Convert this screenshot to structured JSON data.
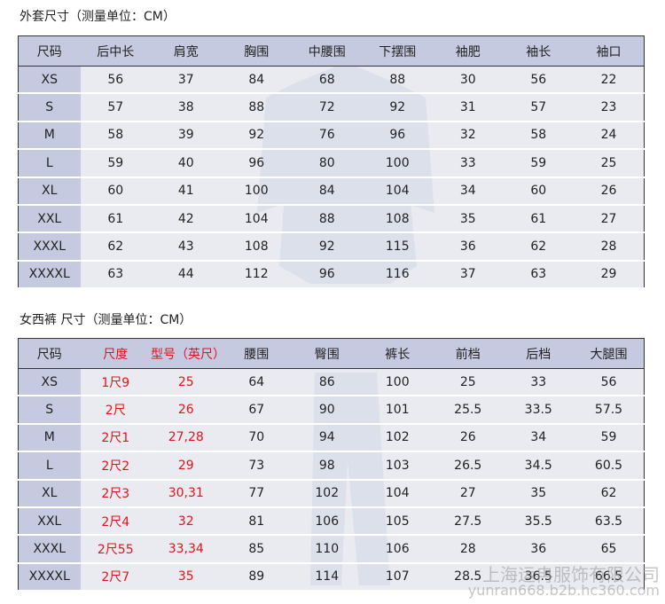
{
  "tables": [
    {
      "title": "外套尺寸（测量单位：CM）",
      "header": [
        "尺码",
        "后中长",
        "肩宽",
        "胸围",
        "中腰围",
        "下摆围",
        "袖肥",
        "袖长",
        "袖口"
      ],
      "rows": [
        [
          "XS",
          "56",
          "37",
          "84",
          "68",
          "88",
          "30",
          "56",
          "22"
        ],
        [
          "S",
          "57",
          "38",
          "88",
          "72",
          "92",
          "31",
          "57",
          "23"
        ],
        [
          "M",
          "58",
          "39",
          "92",
          "76",
          "96",
          "32",
          "58",
          "24"
        ],
        [
          "L",
          "59",
          "40",
          "96",
          "80",
          "100",
          "33",
          "59",
          "25"
        ],
        [
          "XL",
          "60",
          "41",
          "100",
          "84",
          "104",
          "34",
          "60",
          "26"
        ],
        [
          "XXL",
          "61",
          "42",
          "104",
          "88",
          "108",
          "35",
          "61",
          "27"
        ],
        [
          "XXXL",
          "62",
          "43",
          "108",
          "92",
          "115",
          "36",
          "62",
          "28"
        ],
        [
          "XXXXL",
          "63",
          "44",
          "112",
          "96",
          "116",
          "37",
          "63",
          "29"
        ]
      ]
    },
    {
      "title": "女西裤 尺寸（测量单位：CM）",
      "header": [
        "尺码",
        "尺度",
        "型号（英尺）",
        "腰围",
        "臀围",
        "裤长",
        "前档",
        "后档",
        "大腿围"
      ],
      "rows": [
        [
          "XS",
          "1尺9",
          "25",
          "64",
          "86",
          "100",
          "25",
          "33",
          "56"
        ],
        [
          "S",
          "2尺",
          "26",
          "67",
          "90",
          "101",
          "25.5",
          "33.5",
          "57.5"
        ],
        [
          "M",
          "2尺1",
          "27,28",
          "70",
          "94",
          "102",
          "26",
          "34",
          "59"
        ],
        [
          "L",
          "2尺2",
          "29",
          "73",
          "98",
          "103",
          "26.5",
          "34.5",
          "60.5"
        ],
        [
          "XL",
          "2尺3",
          "30,31",
          "77",
          "102",
          "104",
          "27",
          "35",
          "62"
        ],
        [
          "XXL",
          "2尺4",
          "32",
          "81",
          "106",
          "105",
          "27.5",
          "35.5",
          "63.5"
        ],
        [
          "XXXL",
          "2尺55",
          "33,34",
          "85",
          "110",
          "106",
          "28",
          "36",
          "65"
        ],
        [
          "XXXXL",
          "2尺7",
          "35",
          "89",
          "114",
          "107",
          "28.5",
          "36.5",
          "66.5"
        ]
      ]
    }
  ],
  "watermark": {
    "company": "上海运冉服饰有限公司",
    "url": "yunran668.b2b.hc360.com"
  }
}
